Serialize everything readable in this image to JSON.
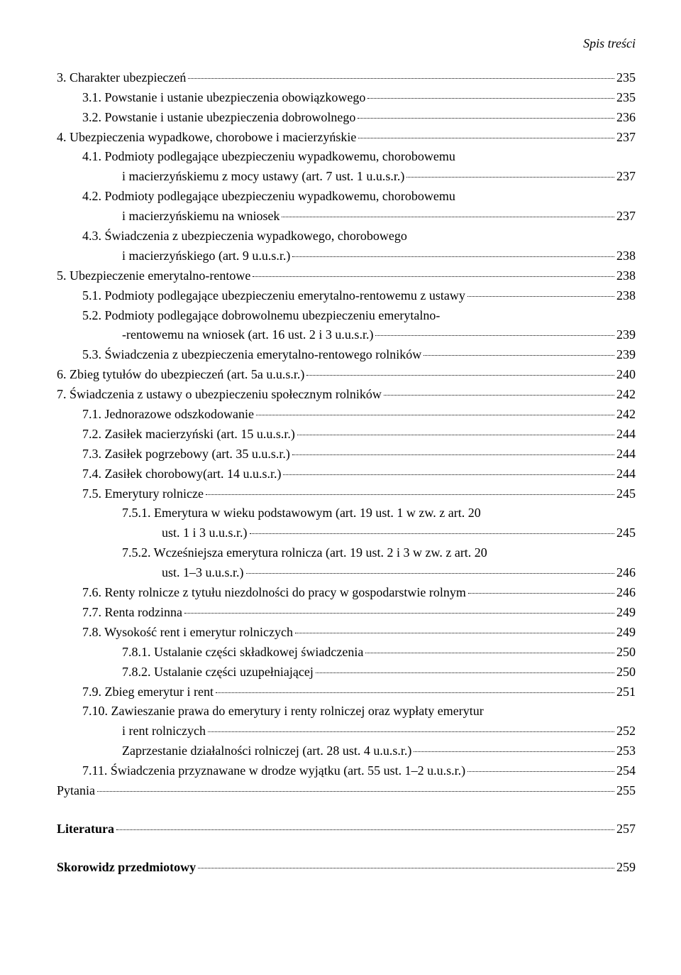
{
  "header": "Spis treści",
  "entries": [
    {
      "level": "l0",
      "text": "3. Charakter ubezpieczeń",
      "page": "235"
    },
    {
      "level": "l1",
      "text": "3.1. Powstanie i ustanie ubezpieczenia obowiązkowego",
      "page": "235"
    },
    {
      "level": "l1",
      "text": "3.2. Powstanie i ustanie ubezpieczenia dobrowolnego",
      "page": "236"
    },
    {
      "level": "l0",
      "text": "4. Ubezpieczenia wypadkowe, chorobowe i macierzyńskie",
      "page": "237"
    },
    {
      "level": "l1",
      "text": "4.1. Podmioty podlegające ubezpieczeniu wypadkowemu, chorobowemu",
      "cont": "i macierzyńskiemu z mocy ustawy (art. 7 ust. 1 u.u.s.r.)",
      "contIndent": "wrap-cont",
      "page": "237"
    },
    {
      "level": "l1",
      "text": "4.2. Podmioty podlegające ubezpieczeniu wypadkowemu, chorobowemu",
      "cont": "i macierzyńskiemu na wniosek",
      "contIndent": "wrap-cont",
      "page": "237"
    },
    {
      "level": "l1",
      "text": "4.3. Świadczenia z ubezpieczenia wypadkowego, chorobowego",
      "cont": "i macierzyńskiego (art. 9 u.u.s.r.)",
      "contIndent": "wrap-cont",
      "page": "238"
    },
    {
      "level": "l0",
      "text": "5. Ubezpieczenie emerytalno-rentowe",
      "page": "238"
    },
    {
      "level": "l1",
      "text": "5.1. Podmioty podlegające ubezpieczeniu emerytalno-rentowemu z ustawy",
      "page": "238"
    },
    {
      "level": "l1",
      "text": "5.2. Podmioty podlegające dobrowolnemu ubezpieczeniu emerytalno-",
      "cont": "-rentowemu na wniosek (art. 16 ust. 2 i 3 u.u.s.r.)",
      "contIndent": "wrap-cont",
      "page": "239"
    },
    {
      "level": "l1",
      "text": "5.3. Świadczenia z ubezpieczenia emerytalno-rentowego rolników",
      "page": "239"
    },
    {
      "level": "l0",
      "text": "6. Zbieg tytułów do ubezpieczeń (art. 5a u.u.s.r.)",
      "page": "240"
    },
    {
      "level": "l0",
      "text": "7. Świadczenia z ustawy o ubezpieczeniu społecznym rolników",
      "page": "242"
    },
    {
      "level": "l1",
      "text": "7.1. Jednorazowe odszkodowanie",
      "page": "242"
    },
    {
      "level": "l1",
      "text": "7.2. Zasiłek macierzyński (art. 15 u.u.s.r.)",
      "page": "244"
    },
    {
      "level": "l1",
      "text": "7.3. Zasiłek pogrzebowy (art. 35 u.u.s.r.)",
      "page": "244"
    },
    {
      "level": "l1",
      "text": "7.4. Zasiłek chorobowy(art. 14 u.u.s.r.)",
      "page": "244"
    },
    {
      "level": "l1",
      "text": "7.5. Emerytury rolnicze",
      "page": "245"
    },
    {
      "level": "l2",
      "text": "7.5.1. Emerytura w wieku podstawowym (art. 19 ust. 1 w zw. z art. 20",
      "cont": "ust. 1 i 3 u.u.s.r.)",
      "contIndent": "wrap-cont2",
      "page": "245"
    },
    {
      "level": "l2",
      "text": "7.5.2. Wcześniejsza emerytura rolnicza (art. 19 ust. 2 i 3 w zw. z art. 20",
      "cont": "ust. 1–3 u.u.s.r.)",
      "contIndent": "wrap-cont2",
      "page": "246"
    },
    {
      "level": "l1",
      "text": "7.6. Renty rolnicze z tytułu niezdolności do pracy w gospodarstwie rolnym",
      "page": "246"
    },
    {
      "level": "l1",
      "text": "7.7. Renta rodzinna",
      "page": "249"
    },
    {
      "level": "l1",
      "text": "7.8. Wysokość rent i emerytur rolniczych",
      "page": "249"
    },
    {
      "level": "l2",
      "text": "7.8.1. Ustalanie części składkowej świadczenia",
      "page": "250"
    },
    {
      "level": "l2",
      "text": "7.8.2. Ustalanie części uzupełniającej",
      "page": "250"
    },
    {
      "level": "l1",
      "text": "7.9. Zbieg emerytur i rent",
      "page": "251"
    },
    {
      "level": "l1",
      "text": "7.10. Zawieszanie prawa do emerytury i renty rolniczej oraz wypłaty emerytur",
      "cont": "i rent rolniczych",
      "contIndent": "wrap-cont",
      "page": "252"
    },
    {
      "level": "wrap-cont",
      "text": "Zaprzestanie działalności rolniczej (art. 28 ust. 4 u.u.s.r.)",
      "page": "253"
    },
    {
      "level": "l1",
      "text": "7.11. Świadczenia przyznawane w drodze wyjątku (art. 55 ust. 1–2 u.u.s.r.)",
      "page": "254"
    },
    {
      "level": "l0",
      "text": "Pytania",
      "page": "255"
    }
  ],
  "bottom": [
    {
      "text": "Literatura",
      "page": "257"
    },
    {
      "text": "Skorowidz przedmiotowy",
      "page": "259"
    }
  ]
}
